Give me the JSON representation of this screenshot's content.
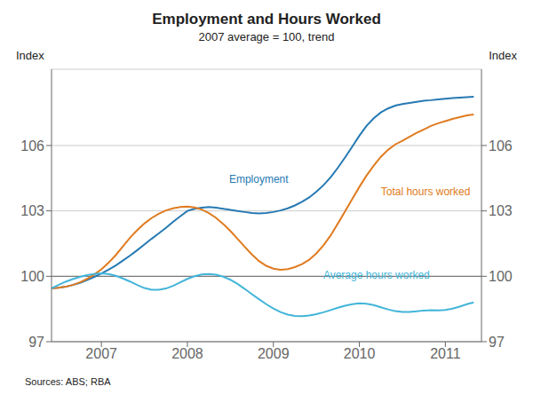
{
  "chart_data": {
    "type": "line",
    "title": "Employment and Hours Worked",
    "subtitle": "2007 average = 100, trend",
    "ylabel": "Index",
    "y2label": "Index",
    "source": "Sources: ABS; RBA",
    "x": [
      2006.42,
      2006.5,
      2006.583,
      2006.667,
      2006.75,
      2006.833,
      2006.917,
      2007.0,
      2007.083,
      2007.167,
      2007.25,
      2007.333,
      2007.417,
      2007.5,
      2007.583,
      2007.667,
      2007.75,
      2007.833,
      2007.917,
      2008.0,
      2008.083,
      2008.167,
      2008.25,
      2008.333,
      2008.417,
      2008.5,
      2008.583,
      2008.667,
      2008.75,
      2008.833,
      2008.917,
      2009.0,
      2009.083,
      2009.167,
      2009.25,
      2009.333,
      2009.417,
      2009.5,
      2009.583,
      2009.667,
      2009.75,
      2009.833,
      2009.917,
      2010.0,
      2010.083,
      2010.167,
      2010.25,
      2010.333,
      2010.417,
      2010.5,
      2010.583,
      2010.667,
      2010.75,
      2010.833,
      2010.917,
      2011.0,
      2011.083,
      2011.167,
      2011.25,
      2011.33
    ],
    "series": [
      {
        "name": "Employment",
        "color": "#2679b2",
        "values": [
          99.45,
          99.47,
          99.52,
          99.6,
          99.7,
          99.83,
          99.97,
          100.13,
          100.3,
          100.5,
          100.72,
          100.95,
          101.2,
          101.46,
          101.72,
          101.97,
          102.22,
          102.5,
          102.75,
          103.0,
          103.1,
          103.15,
          103.18,
          103.15,
          103.1,
          103.05,
          103.0,
          102.95,
          102.9,
          102.88,
          102.9,
          102.95,
          103.02,
          103.12,
          103.25,
          103.42,
          103.62,
          103.88,
          104.18,
          104.55,
          104.98,
          105.45,
          105.95,
          106.45,
          106.9,
          107.25,
          107.52,
          107.7,
          107.83,
          107.9,
          107.95,
          108.0,
          108.05,
          108.08,
          108.12,
          108.15,
          108.18,
          108.2,
          108.22,
          108.24
        ]
      },
      {
        "name": "Total hours worked",
        "color": "#e07b20",
        "values": [
          99.45,
          99.47,
          99.52,
          99.6,
          99.72,
          99.88,
          100.08,
          100.32,
          100.62,
          100.97,
          101.37,
          101.77,
          102.12,
          102.42,
          102.67,
          102.87,
          103.02,
          103.12,
          103.18,
          103.2,
          103.16,
          103.06,
          102.9,
          102.68,
          102.4,
          102.08,
          101.72,
          101.35,
          101.0,
          100.7,
          100.48,
          100.35,
          100.3,
          100.33,
          100.42,
          100.56,
          100.76,
          101.05,
          101.42,
          101.88,
          102.42,
          102.98,
          103.55,
          104.1,
          104.62,
          105.08,
          105.48,
          105.8,
          106.05,
          106.22,
          106.4,
          106.58,
          106.74,
          106.9,
          107.02,
          107.12,
          107.22,
          107.3,
          107.38,
          107.42
        ]
      },
      {
        "name": "Average hours worked",
        "color": "#42b5d9",
        "values": [
          99.45,
          99.6,
          99.75,
          99.87,
          99.97,
          100.05,
          100.1,
          100.13,
          100.1,
          100.02,
          99.9,
          99.76,
          99.6,
          99.46,
          99.38,
          99.38,
          99.44,
          99.56,
          99.72,
          99.88,
          100.0,
          100.08,
          100.1,
          100.07,
          99.98,
          99.84,
          99.65,
          99.42,
          99.18,
          98.95,
          98.72,
          98.52,
          98.36,
          98.24,
          98.18,
          98.17,
          98.2,
          98.26,
          98.35,
          98.45,
          98.56,
          98.65,
          98.72,
          98.76,
          98.74,
          98.68,
          98.58,
          98.48,
          98.4,
          98.36,
          98.36,
          98.39,
          98.43,
          98.45,
          98.44,
          98.46,
          98.52,
          98.61,
          98.72,
          98.8
        ]
      }
    ],
    "xlim": [
      2006.42,
      2011.42
    ],
    "xticks": [
      2007,
      2008,
      2009,
      2010,
      2011
    ],
    "ylim": [
      97,
      109.5
    ],
    "yticks": [
      97,
      100,
      103,
      106
    ],
    "y2lim": [
      97,
      109.5
    ],
    "y2ticks": [
      97,
      100,
      103,
      106
    ],
    "hline": 100,
    "grid": true,
    "annotations": [
      {
        "text": "Employment",
        "x": 2008.83,
        "y": 104.3,
        "color": "#2679b2"
      },
      {
        "text": "Total hours worked",
        "x": 2010.25,
        "y": 103.7,
        "color": "#e07b20"
      },
      {
        "text": "Average hours worked",
        "x": 2009.58,
        "y": 99.9,
        "color": "#42b5d9"
      }
    ]
  }
}
